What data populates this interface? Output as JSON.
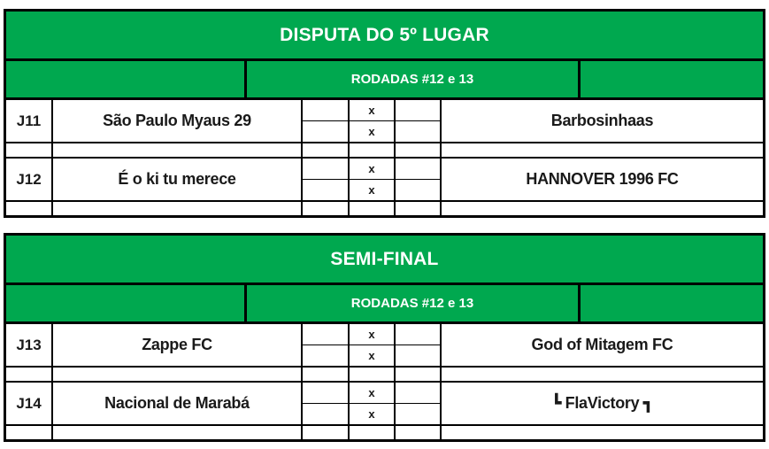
{
  "colors": {
    "green": "#00A84F",
    "border": "#000000",
    "page_bg": "#FFFFFF",
    "title_text": "#FFFFFF",
    "cell_text": "#1A1A1A"
  },
  "tables": [
    {
      "title": "DISPUTA DO 5º LUGAR",
      "subtitle": "RODADAS #12 e 13",
      "matches": [
        {
          "id": "J11",
          "home": "São Paulo Myaus 29",
          "away": "Barbosinhaas",
          "leg1_mark": "x",
          "leg2_mark": "x"
        },
        {
          "id": "J12",
          "home": "É o ki tu merece",
          "away": "HANNOVER 1996 FC",
          "leg1_mark": "x",
          "leg2_mark": "x"
        }
      ]
    },
    {
      "title": "SEMI-FINAL",
      "subtitle": "RODADAS #12 e 13",
      "matches": [
        {
          "id": "J13",
          "home": "Zappe FC",
          "away": "God of Mitagem FC",
          "leg1_mark": "x",
          "leg2_mark": "x"
        },
        {
          "id": "J14",
          "home": "Nacional de Marabá",
          "away": "┗ FlaVictory ┓",
          "leg1_mark": "x",
          "leg2_mark": "x"
        }
      ]
    }
  ]
}
